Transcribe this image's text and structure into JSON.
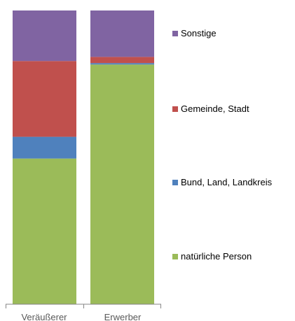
{
  "chart_data": {
    "type": "bar",
    "stacked": true,
    "normalized": true,
    "categories": [
      "Veräußerer",
      "Erwerber"
    ],
    "series": [
      {
        "name": "natürliche Person",
        "color": "#9bbb59",
        "values": [
          0.496,
          0.816
        ]
      },
      {
        "name": "Bund, Land, Landkreis",
        "color": "#4f81bd",
        "values": [
          0.074,
          0.005
        ]
      },
      {
        "name": "Gemeinde, Stadt",
        "color": "#c0504d",
        "values": [
          0.258,
          0.021
        ]
      },
      {
        "name": "Sonstige",
        "color": "#8064a2",
        "values": [
          0.172,
          0.158
        ]
      }
    ],
    "title": "",
    "xlabel": "",
    "ylabel": "",
    "ylim": [
      0,
      1
    ],
    "grid": false,
    "legend": "right"
  }
}
